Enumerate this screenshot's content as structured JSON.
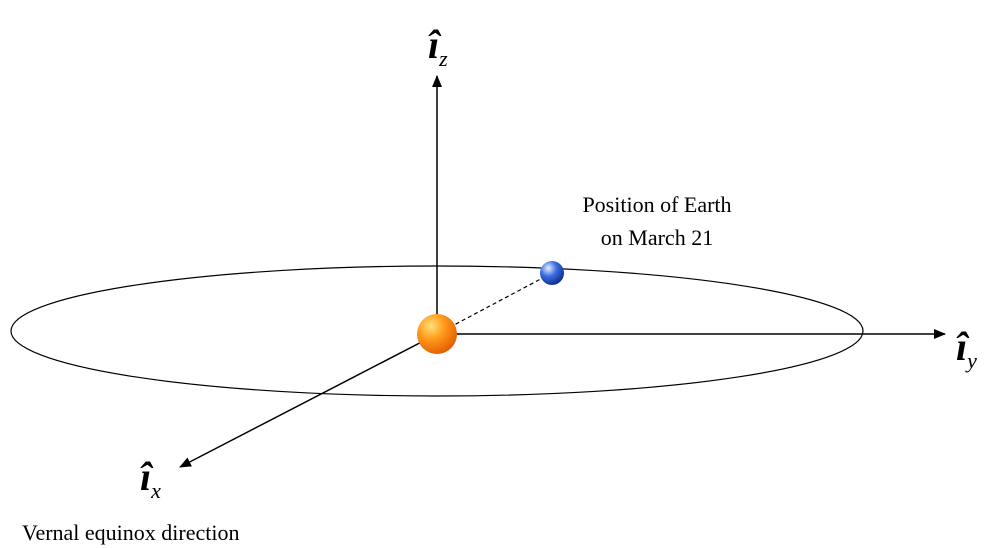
{
  "axes": [
    {
      "symbol": "î",
      "subscript": "z"
    },
    {
      "symbol": "î",
      "subscript": "y"
    },
    {
      "symbol": "î",
      "subscript": "x"
    }
  ],
  "earth_label": [
    "Position of Earth",
    "on March 21"
  ],
  "x_axis_caption": "Vernal equinox direction"
}
